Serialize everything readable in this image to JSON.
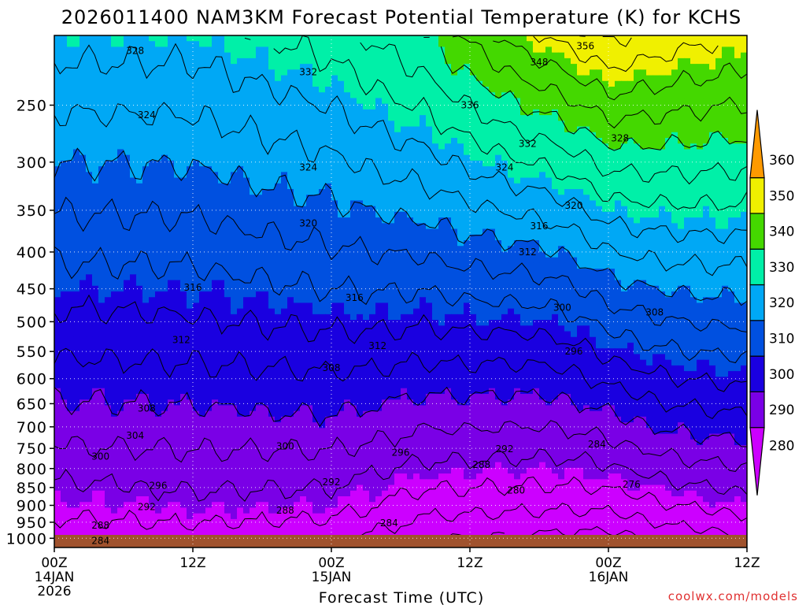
{
  "chart_data": {
    "type": "heatmap",
    "title": "2026011400 NAM3KM Forecast Potential Temperature (K) for KCHS",
    "xlabel": "Forecast Time (UTC)",
    "ylabel": "",
    "credit": "coolwx.com/models",
    "x_ticks": [
      {
        "hour": 0,
        "label": "00Z",
        "date": "14JAN",
        "year": "2026"
      },
      {
        "hour": 12,
        "label": "12Z",
        "date": "",
        "year": ""
      },
      {
        "hour": 24,
        "label": "00Z",
        "date": "15JAN",
        "year": ""
      },
      {
        "hour": 36,
        "label": "12Z",
        "date": "",
        "year": ""
      },
      {
        "hour": 48,
        "label": "00Z",
        "date": "16JAN",
        "year": ""
      },
      {
        "hour": 60,
        "label": "12Z",
        "date": "",
        "year": ""
      }
    ],
    "x_range_hours": [
      0,
      60
    ],
    "y_axis": {
      "scale": "log-pressure",
      "range_hPa": [
        1030,
        200
      ],
      "ticks": [
        250,
        300,
        350,
        400,
        450,
        500,
        550,
        600,
        650,
        700,
        750,
        800,
        850,
        900,
        950,
        1000
      ]
    },
    "colorbar": {
      "levels": [
        280,
        290,
        300,
        310,
        320,
        330,
        340,
        350,
        360
      ],
      "colors": [
        "#cc00ff",
        "#7a00e6",
        "#1a00e0",
        "#0050e0",
        "#00a8f5",
        "#00f0a8",
        "#44d800",
        "#f0f000",
        "#ff9a00"
      ]
    },
    "profiles": [
      {
        "hour": 0,
        "theta_1000": 285,
        "theta_200": 330
      },
      {
        "hour": 12,
        "theta_1000": 286,
        "theta_200": 330
      },
      {
        "hour": 24,
        "theta_1000": 285,
        "theta_200": 334
      },
      {
        "hour": 32,
        "theta_1000": 280,
        "theta_200": 340
      },
      {
        "hour": 40,
        "theta_1000": 279,
        "theta_200": 350
      },
      {
        "hour": 48,
        "theta_1000": 278,
        "theta_200": 357
      },
      {
        "hour": 54,
        "theta_1000": 281,
        "theta_200": 354
      },
      {
        "hour": 60,
        "theta_1000": 283,
        "theta_200": 352
      }
    ],
    "contour_labels": [
      {
        "text": "328",
        "hour": 7,
        "p": 210
      },
      {
        "text": "332",
        "hour": 22,
        "p": 225
      },
      {
        "text": "324",
        "hour": 8,
        "p": 258
      },
      {
        "text": "324",
        "hour": 22,
        "p": 305
      },
      {
        "text": "320",
        "hour": 22,
        "p": 365
      },
      {
        "text": "316",
        "hour": 12,
        "p": 448
      },
      {
        "text": "316",
        "hour": 26,
        "p": 463
      },
      {
        "text": "312",
        "hour": 11,
        "p": 530
      },
      {
        "text": "312",
        "hour": 28,
        "p": 540
      },
      {
        "text": "308",
        "hour": 24,
        "p": 580
      },
      {
        "text": "308",
        "hour": 8,
        "p": 660
      },
      {
        "text": "304",
        "hour": 7,
        "p": 720
      },
      {
        "text": "300",
        "hour": 4,
        "p": 770
      },
      {
        "text": "300",
        "hour": 20,
        "p": 745
      },
      {
        "text": "296",
        "hour": 9,
        "p": 845
      },
      {
        "text": "296",
        "hour": 30,
        "p": 760
      },
      {
        "text": "292",
        "hour": 8,
        "p": 905
      },
      {
        "text": "292",
        "hour": 24,
        "p": 835
      },
      {
        "text": "292",
        "hour": 39,
        "p": 752
      },
      {
        "text": "288",
        "hour": 4,
        "p": 960
      },
      {
        "text": "288",
        "hour": 20,
        "p": 915
      },
      {
        "text": "288",
        "hour": 37,
        "p": 790
      },
      {
        "text": "284",
        "hour": 4,
        "p": 1008
      },
      {
        "text": "284",
        "hour": 29,
        "p": 952
      },
      {
        "text": "284",
        "hour": 47,
        "p": 740
      },
      {
        "text": "280",
        "hour": 40,
        "p": 858
      },
      {
        "text": "276",
        "hour": 50,
        "p": 842
      },
      {
        "text": "336",
        "hour": 36,
        "p": 250
      },
      {
        "text": "332",
        "hour": 41,
        "p": 283
      },
      {
        "text": "328",
        "hour": 49,
        "p": 278
      },
      {
        "text": "324",
        "hour": 39,
        "p": 305
      },
      {
        "text": "320",
        "hour": 45,
        "p": 345
      },
      {
        "text": "316",
        "hour": 42,
        "p": 368
      },
      {
        "text": "312",
        "hour": 41,
        "p": 400
      },
      {
        "text": "300",
        "hour": 44,
        "p": 478
      },
      {
        "text": "296",
        "hour": 45,
        "p": 550
      },
      {
        "text": "308",
        "hour": 52,
        "p": 485
      },
      {
        "text": "348",
        "hour": 42,
        "p": 218
      },
      {
        "text": "356",
        "hour": 46,
        "p": 207
      }
    ]
  }
}
